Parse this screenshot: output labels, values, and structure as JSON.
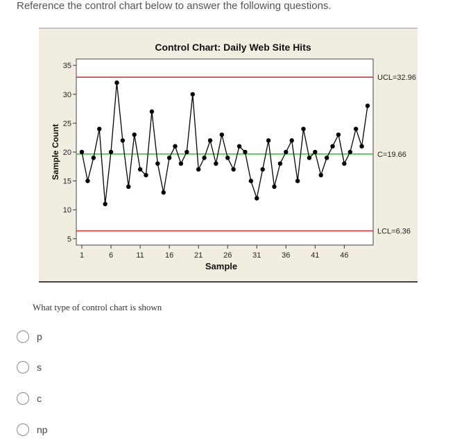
{
  "instructions": "Reference the control chart below to answer the following questions.",
  "question": "What type of control chart is shown",
  "options": [
    {
      "label": "p"
    },
    {
      "label": "s"
    },
    {
      "label": "c"
    },
    {
      "label": "np"
    }
  ],
  "chart_data": {
    "type": "line",
    "title": "Control Chart: Daily Web Site Hits",
    "xlabel": "Sample",
    "ylabel": "Sample Count",
    "xlim": [
      1,
      50
    ],
    "ylim": [
      5,
      35
    ],
    "xticks": [
      1,
      6,
      11,
      16,
      21,
      26,
      31,
      36,
      41,
      46
    ],
    "yticks": [
      5,
      10,
      15,
      20,
      25,
      30,
      35
    ],
    "x": [
      1,
      2,
      3,
      4,
      5,
      6,
      7,
      8,
      9,
      10,
      11,
      12,
      13,
      14,
      15,
      16,
      17,
      18,
      19,
      20,
      21,
      22,
      23,
      24,
      25,
      26,
      27,
      28,
      29,
      30,
      31,
      32,
      33,
      34,
      35,
      36,
      37,
      38,
      39,
      40,
      41,
      42,
      43,
      44,
      45,
      46,
      47,
      48,
      49,
      50
    ],
    "values": [
      20,
      15,
      19,
      24,
      11,
      20,
      32,
      22,
      14,
      23,
      17,
      16,
      27,
      18,
      13,
      19,
      21,
      18,
      20,
      30,
      17,
      19,
      22,
      18,
      23,
      19,
      17,
      21,
      20,
      15,
      12,
      17,
      22,
      14,
      18,
      20,
      22,
      15,
      24,
      19,
      20,
      16,
      19,
      21,
      23,
      18,
      20,
      24,
      21,
      28
    ],
    "control_limits": [
      {
        "label": "UCL=32.96",
        "value": 32.96,
        "color": "#e03030"
      },
      {
        "label": "C=19.66",
        "value": 19.66,
        "color": "#33cc33"
      },
      {
        "label": "LCL=6.36",
        "value": 6.36,
        "color": "#e03030"
      }
    ],
    "line_color": "#000000",
    "marker_color": "#000000"
  }
}
